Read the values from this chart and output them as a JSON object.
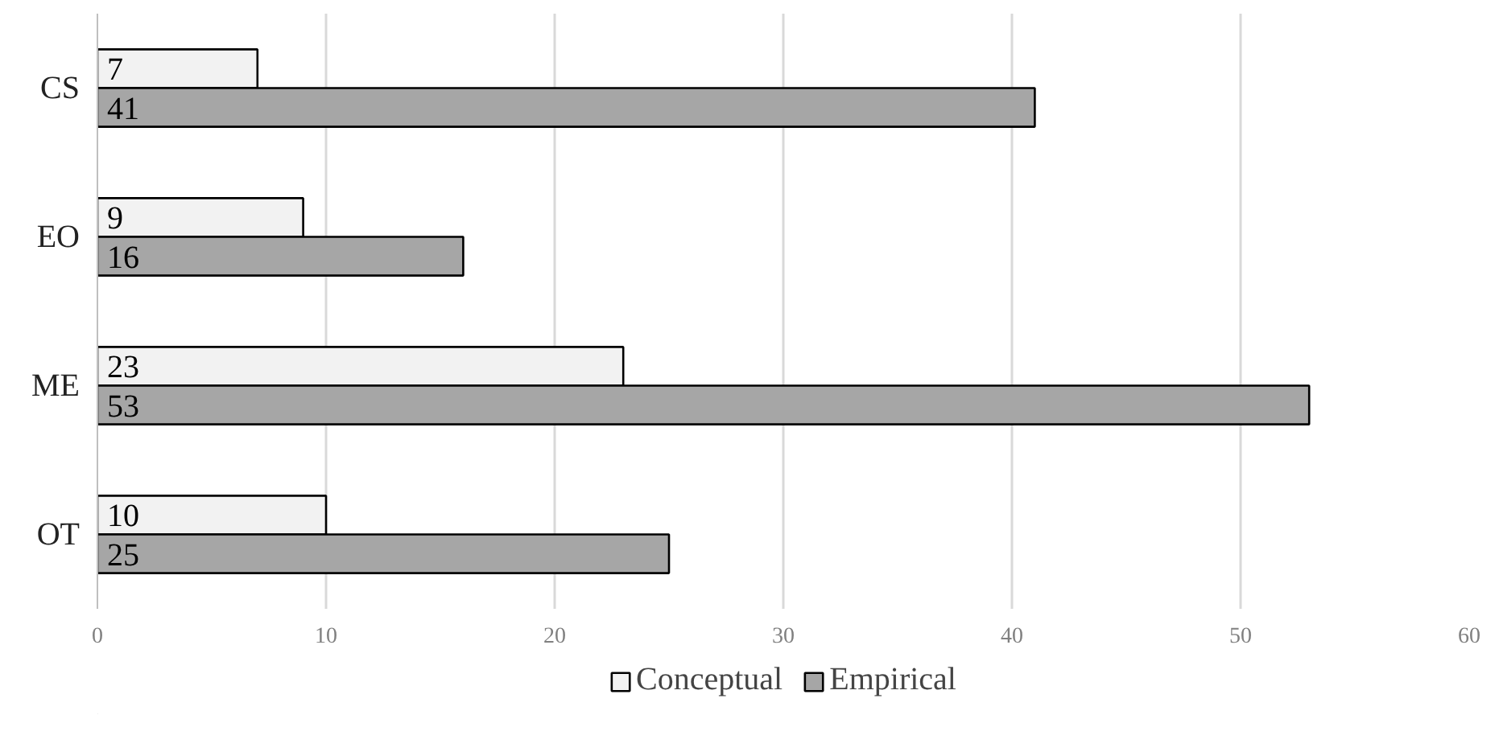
{
  "chart_data": {
    "type": "bar",
    "orientation": "horizontal",
    "categories": [
      "CS",
      "EO",
      "ME",
      "OT"
    ],
    "series": [
      {
        "name": "Conceptual",
        "color": "#f2f2f2",
        "values": [
          7,
          9,
          23,
          10
        ]
      },
      {
        "name": "Empirical",
        "color": "#a6a6a6",
        "values": [
          41,
          16,
          53,
          25
        ]
      }
    ],
    "xlim": [
      0,
      60
    ],
    "xticks": [
      0,
      10,
      20,
      30,
      40,
      50,
      60
    ],
    "grid": "x",
    "legend": "bottom",
    "data_labels": true
  }
}
